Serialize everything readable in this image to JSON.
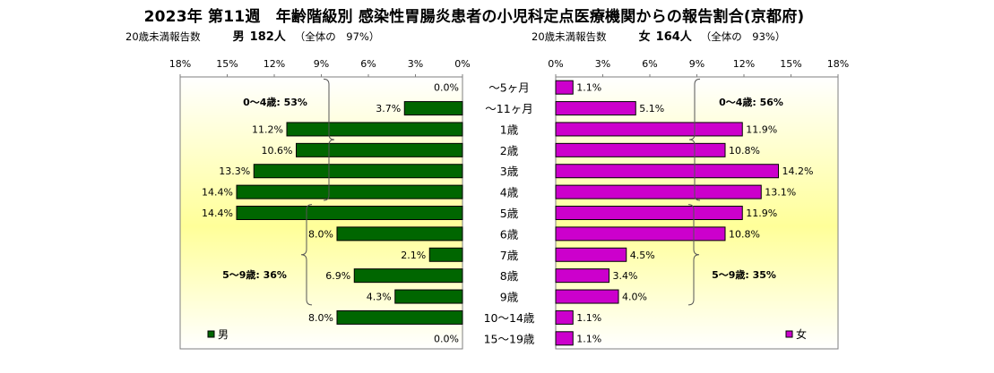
{
  "title": "2023年 第11週　年齢階級別 感染性胃腸炎患者の小児科定点医療機関からの報告割合(京都府)",
  "male_header": {
    "under20_label": "20歳未満報告数",
    "sex": "男",
    "count": "182人",
    "total_share": "（全体の　97%）"
  },
  "female_header": {
    "under20_label": "20歳未満報告数",
    "sex": "女",
    "count": "164人",
    "total_share": "（全体の　93%）"
  },
  "colors": {
    "male_bar": "#006600",
    "female_bar": "#CC00CC",
    "plot_bg_edge": "#FFFFFF",
    "plot_bg_center": "#FFFF99"
  },
  "chart_data": [
    {
      "type": "bar",
      "orientation": "horizontal-reversed",
      "series": [
        {
          "name": "男",
          "values": [
            0.0,
            3.7,
            11.2,
            10.6,
            13.3,
            14.4,
            14.4,
            8.0,
            2.1,
            6.9,
            4.3,
            8.0,
            0.0
          ]
        }
      ],
      "categories": [
        "～5ヶ月",
        "～11ヶ月",
        "1歳",
        "2歳",
        "3歳",
        "4歳",
        "5歳",
        "6歳",
        "7歳",
        "8歳",
        "9歳",
        "10～14歳",
        "15～19歳"
      ],
      "data_labels": [
        "0.0%",
        "3.7%",
        "11.2%",
        "10.6%",
        "13.3%",
        "14.4%",
        "14.4%",
        "8.0%",
        "2.1%",
        "6.9%",
        "4.3%",
        "8.0%",
        "0.0%"
      ],
      "xlim": [
        0,
        18
      ],
      "xticks": [
        "18%",
        "15%",
        "12%",
        "9%",
        "6%",
        "3%",
        "0%"
      ],
      "annotations": [
        "0～4歳: 53%",
        "5～9歳: 36%"
      ],
      "legend": "男"
    },
    {
      "type": "bar",
      "orientation": "horizontal",
      "series": [
        {
          "name": "女",
          "values": [
            1.1,
            5.1,
            11.9,
            10.8,
            14.2,
            13.1,
            11.9,
            10.8,
            4.5,
            3.4,
            4.0,
            1.1,
            1.1
          ]
        }
      ],
      "categories": [
        "～5ヶ月",
        "～11ヶ月",
        "1歳",
        "2歳",
        "3歳",
        "4歳",
        "5歳",
        "6歳",
        "7歳",
        "8歳",
        "9歳",
        "10～14歳",
        "15～19歳"
      ],
      "data_labels": [
        "1.1%",
        "5.1%",
        "11.9%",
        "10.8%",
        "14.2%",
        "13.1%",
        "11.9%",
        "10.8%",
        "4.5%",
        "3.4%",
        "4.0%",
        "1.1%",
        "1.1%"
      ],
      "xlim": [
        0,
        18
      ],
      "xticks": [
        "0%",
        "3%",
        "6%",
        "9%",
        "12%",
        "15%",
        "18%"
      ],
      "annotations": [
        "0～4歳: 56%",
        "5～9歳: 35%"
      ],
      "legend": "女"
    }
  ]
}
